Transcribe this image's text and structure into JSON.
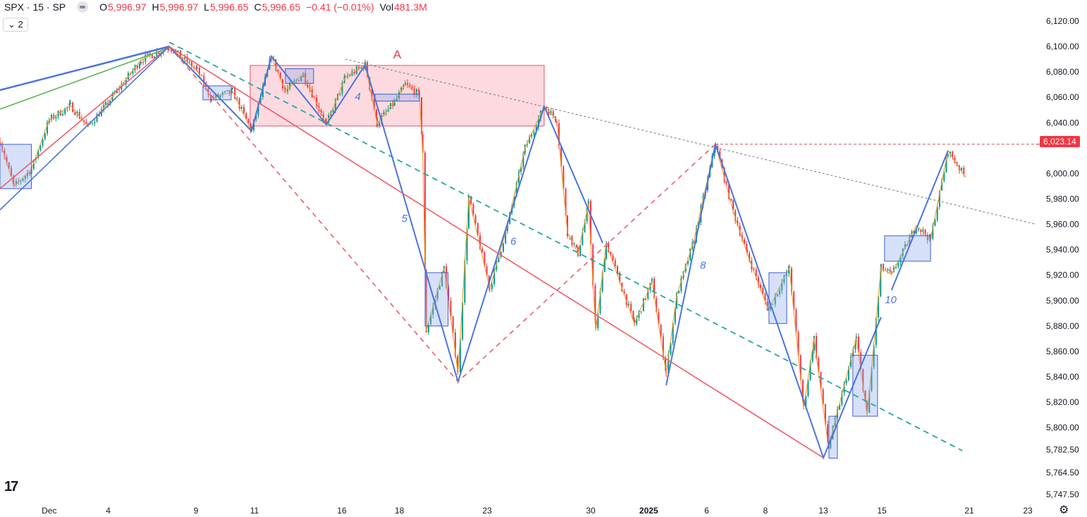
{
  "header": {
    "symbol": "SPX · 15 · SP",
    "o_label": "O",
    "o": "5,996.97",
    "h_label": "H",
    "h": "5,996.97",
    "l_label": "L",
    "l": "5,996.65",
    "c_label": "C",
    "c": "5,996.65",
    "change": "−0.41 (−0.01%)",
    "vol_label": "Vol",
    "vol": "481.3M",
    "indicator_count": "2"
  },
  "last_price_label": "6,023.14",
  "colors": {
    "up": "#089981",
    "down": "#f23645",
    "blue": "#4a74e0",
    "red": "#ef5d6a",
    "green": "#5fb35f",
    "teal": "#26a69a",
    "orange": "#f0a030",
    "zone": "#fcd4d9"
  },
  "chart_data": {
    "type": "candlestick",
    "title": "SPX · 15 · SP",
    "xlim": [
      -1.69,
      33.9
    ],
    "ylim": [
      5743,
      6136.6
    ],
    "x_unit": "trading days since Dec 2",
    "x_ticks": [
      {
        "x": 0,
        "label": "Dec"
      },
      {
        "x": 2.03,
        "label": "4"
      },
      {
        "x": 5.04,
        "label": "9"
      },
      {
        "x": 7.05,
        "label": "11"
      },
      {
        "x": 10.05,
        "label": "16"
      },
      {
        "x": 12.03,
        "label": "18"
      },
      {
        "x": 15.04,
        "label": "23"
      },
      {
        "x": 18.6,
        "label": "30"
      },
      {
        "x": 20.59,
        "label": "2025",
        "bold": true
      },
      {
        "x": 22.58,
        "label": "6"
      },
      {
        "x": 24.6,
        "label": "8"
      },
      {
        "x": 26.59,
        "label": "13"
      },
      {
        "x": 28.6,
        "label": "15"
      },
      {
        "x": 31.6,
        "label": "21"
      },
      {
        "x": 33.61,
        "label": "23"
      }
    ],
    "y_ticks": [
      {
        "y": 6120,
        "label": "6,120.00"
      },
      {
        "y": 6100,
        "label": "6,100.00"
      },
      {
        "y": 6080,
        "label": "6,080.00"
      },
      {
        "y": 6060,
        "label": "6,060.00"
      },
      {
        "y": 6040,
        "label": "6,040.00"
      },
      {
        "y": 6000,
        "label": "6,000.00"
      },
      {
        "y": 5980,
        "label": "5,980.00"
      },
      {
        "y": 5960,
        "label": "5,960.00"
      },
      {
        "y": 5940,
        "label": "5,940.00"
      },
      {
        "y": 5920,
        "label": "5,920.00"
      },
      {
        "y": 5900,
        "label": "5,900.00"
      },
      {
        "y": 5880,
        "label": "5,880.00"
      },
      {
        "y": 5860,
        "label": "5,860.00"
      },
      {
        "y": 5840,
        "label": "5,840.00"
      },
      {
        "y": 5820,
        "label": "5,820.00"
      },
      {
        "y": 5800,
        "label": "5,800.00"
      },
      {
        "y": 5782.5,
        "label": "5,782.50"
      },
      {
        "y": 5764.5,
        "label": "5,764.50"
      },
      {
        "y": 5747.5,
        "label": "5,747.50"
      }
    ],
    "last_price": 6023.14,
    "price_path": [
      [
        -1.69,
        6025.8
      ],
      [
        -1.21,
        5989.7
      ],
      [
        -0.61,
        6003.6
      ],
      [
        0,
        6042.4
      ],
      [
        0.73,
        6053.5
      ],
      [
        1.33,
        6036.9
      ],
      [
        1.94,
        6053.5
      ],
      [
        3.15,
        6089.5
      ],
      [
        4.12,
        6100
      ],
      [
        5.08,
        6081.2
      ],
      [
        5.57,
        6059
      ],
      [
        6.3,
        6064.6
      ],
      [
        6.95,
        6033.5
      ],
      [
        7.63,
        6092.3
      ],
      [
        8.11,
        6064.6
      ],
      [
        8.72,
        6078.4
      ],
      [
        9.52,
        6038.5
      ],
      [
        10.17,
        6075.7
      ],
      [
        10.85,
        6085.6
      ],
      [
        11.26,
        6039.6
      ],
      [
        11.86,
        6056.3
      ],
      [
        12.23,
        6070.1
      ],
      [
        12.71,
        6061.8
      ],
      [
        12.83,
        6014.7
      ],
      [
        12.95,
        5876.1
      ],
      [
        13.56,
        5926
      ],
      [
        14.04,
        5842.8
      ],
      [
        14.41,
        5981.4
      ],
      [
        15.13,
        5909.4
      ],
      [
        15.74,
        5959.2
      ],
      [
        16.34,
        6020.2
      ],
      [
        17,
        6052.9
      ],
      [
        17.43,
        6042.4
      ],
      [
        17.8,
        5953.7
      ],
      [
        18.16,
        5937.1
      ],
      [
        18.52,
        5975.9
      ],
      [
        18.77,
        5876.1
      ],
      [
        19.13,
        5945.4
      ],
      [
        20.1,
        5881.6
      ],
      [
        20.7,
        5914.9
      ],
      [
        21.19,
        5842.8
      ],
      [
        21.55,
        5903.8
      ],
      [
        22.15,
        5948.2
      ],
      [
        22.88,
        6023.1
      ],
      [
        23.49,
        5970.3
      ],
      [
        23.97,
        5937.1
      ],
      [
        24.7,
        5892.7
      ],
      [
        25.42,
        5926
      ],
      [
        25.91,
        5815.1
      ],
      [
        26.27,
        5870.6
      ],
      [
        26.76,
        5784.6
      ],
      [
        27.72,
        5870.6
      ],
      [
        28.09,
        5809.6
      ],
      [
        28.57,
        5926
      ],
      [
        28.93,
        5920.4
      ],
      [
        29.78,
        5959.2
      ],
      [
        30.27,
        5948.2
      ],
      [
        30.87,
        6018
      ],
      [
        31.48,
        5996.7
      ]
    ],
    "lines": [
      {
        "name": "blue-fan-1",
        "color": "blue",
        "width": 2.5,
        "points": [
          [
            -1.69,
            6065.7
          ],
          [
            4.12,
            6100
          ]
        ]
      },
      {
        "name": "green-fan",
        "color": "green",
        "width": 1.6,
        "points": [
          [
            -1.69,
            6050.7
          ],
          [
            4.12,
            6099
          ]
        ]
      },
      {
        "name": "red-fan",
        "color": "red",
        "width": 1.6,
        "points": [
          [
            -1.69,
            5988.1
          ],
          [
            4.12,
            6100
          ]
        ]
      },
      {
        "name": "blue-fan-2",
        "color": "blue",
        "width": 1.6,
        "points": [
          [
            -1.69,
            5971.4
          ],
          [
            4.12,
            6100
          ]
        ]
      },
      {
        "name": "blue-zigzag",
        "color": "blue",
        "width": 2,
        "points": [
          [
            4.12,
            6100
          ],
          [
            6.95,
            6033.5
          ],
          [
            7.63,
            6092.3
          ],
          [
            9.52,
            6038.5
          ],
          [
            10.85,
            6085.6
          ],
          [
            14.04,
            5836.2
          ],
          [
            17,
            6052.9
          ],
          [
            19.01,
            5945.4
          ]
        ]
      },
      {
        "name": "blue-zigzag-2",
        "color": "blue",
        "width": 2,
        "points": [
          [
            21.19,
            5833.4
          ],
          [
            22.88,
            6023.1
          ],
          [
            26.59,
            5776.3
          ],
          [
            28.57,
            5887
          ]
        ]
      },
      {
        "name": "blue-zigzag-3",
        "color": "blue",
        "width": 2,
        "points": [
          [
            28.93,
            5908.2
          ],
          [
            30.87,
            6018
          ]
        ]
      },
      {
        "name": "red-trendline",
        "color": "red",
        "width": 1.6,
        "points": [
          [
            4.12,
            6100
          ],
          [
            26.59,
            5776.3
          ]
        ]
      },
      {
        "name": "red-dashed-zigzag",
        "color": "red",
        "width": 1.6,
        "dash": "7,6",
        "points": [
          [
            4.12,
            6100
          ],
          [
            14.04,
            5836.2
          ],
          [
            22.88,
            6023.1
          ]
        ]
      },
      {
        "name": "resistance-dashed",
        "color": "#c94c5c",
        "width": 1,
        "dash": "4,3",
        "points": [
          [
            22.88,
            6023.1
          ],
          [
            34.02,
            6023.1
          ]
        ]
      },
      {
        "name": "teal-dashed-channel",
        "color": "teal",
        "width": 1.8,
        "dash": "8,6",
        "points": [
          [
            4.12,
            6103.4
          ],
          [
            31.36,
            5781.9
          ]
        ]
      },
      {
        "name": "grey-dotted-trend",
        "color": "#777",
        "width": 1,
        "dash": "3,3",
        "points": [
          [
            10.17,
            6090.1
          ],
          [
            33.9,
            5960
          ]
        ]
      }
    ],
    "zone": {
      "label": "A",
      "x": [
        6.9,
        17
      ],
      "y": [
        6037.4,
        6085.1
      ]
    },
    "boxes": [
      [
        -1.69,
        -0.61,
        5988.1,
        6023
      ],
      [
        5.28,
        6.25,
        6058,
        6069
      ],
      [
        8.11,
        9.08,
        6071,
        6082.5
      ],
      [
        11.19,
        12.71,
        6057,
        6062.5
      ],
      [
        12.91,
        13.7,
        5880,
        5922
      ],
      [
        24.72,
        25.33,
        5882,
        5922
      ],
      [
        27.6,
        28.45,
        5809,
        5857
      ],
      [
        28.69,
        30.27,
        5931,
        5951
      ],
      [
        26.78,
        27.07,
        5776,
        5809
      ]
    ],
    "wave_labels": [
      {
        "x": 10.5,
        "y": 6058,
        "text": "4"
      },
      {
        "x": 12.1,
        "y": 5962,
        "text": "5"
      },
      {
        "x": 15.84,
        "y": 5944,
        "text": "6"
      },
      {
        "x": 22.35,
        "y": 5925,
        "text": "8"
      },
      {
        "x": 28.7,
        "y": 5898,
        "text": "10"
      }
    ]
  }
}
